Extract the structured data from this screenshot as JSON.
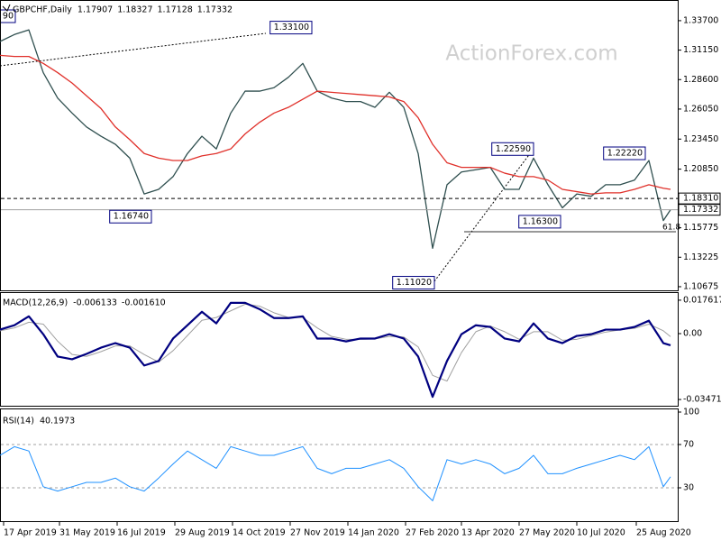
{
  "chart_data": [
    {
      "type": "line",
      "title": "GBPCHF,Daily",
      "ohlc": [
        1.17907,
        1.18327,
        1.17128,
        1.17332
      ],
      "x": [
        0,
        8,
        16,
        24,
        32,
        40,
        48,
        56,
        64,
        72,
        80,
        88,
        96,
        104,
        112,
        120,
        128,
        136,
        144,
        152,
        160,
        168,
        176,
        184,
        192,
        200,
        208,
        216,
        224,
        232,
        240,
        248,
        256,
        264,
        272,
        280,
        288,
        296,
        304,
        312,
        320,
        328,
        336,
        344,
        352,
        360,
        368,
        372
      ],
      "xlim": [
        0,
        376
      ],
      "xticks": [
        {
          "value": 2,
          "label": "17 Apr 2019"
        },
        {
          "value": 33,
          "label": "31 May 2019"
        },
        {
          "value": 65,
          "label": "16 Jul 2019"
        },
        {
          "value": 97,
          "label": "29 Aug 2019"
        },
        {
          "value": 129,
          "label": "14 Oct 2019"
        },
        {
          "value": 161,
          "label": "27 Nov 2019"
        },
        {
          "value": 193,
          "label": "14 Jan 2020"
        },
        {
          "value": 225,
          "label": "27 Feb 2020"
        },
        {
          "value": 256,
          "label": "13 Apr 2020"
        },
        {
          "value": 288,
          "label": "27 May 2020"
        },
        {
          "value": 320,
          "label": "10 Jul 2020"
        },
        {
          "value": 353,
          "label": "25 Aug 2020"
        }
      ],
      "ylim": [
        1.1036,
        1.3541
      ],
      "yticks": [
        {
          "value": 1.337,
          "label": "1.33700"
        },
        {
          "value": 1.3115,
          "label": "1.31150"
        },
        {
          "value": 1.286,
          "label": "1.28600"
        },
        {
          "value": 1.2605,
          "label": "1.26050"
        },
        {
          "value": 1.2345,
          "label": "1.23450"
        },
        {
          "value": 1.2085,
          "label": "1.20850"
        },
        1.15775,
        1.13225,
        1.10675
      ],
      "series": [
        {
          "color": "#2f4f4f",
          "values": [
            1.319,
            1.325,
            1.329,
            1.292,
            1.27,
            1.257,
            1.245,
            1.237,
            1.23,
            1.218,
            1.187,
            1.191,
            1.202,
            1.222,
            1.237,
            1.226,
            1.257,
            1.276,
            1.276,
            1.279,
            1.288,
            1.3,
            1.276,
            1.27,
            1.267,
            1.267,
            1.262,
            1.275,
            1.262,
            1.222,
            1.14,
            1.195,
            1.206,
            1.208,
            1.21,
            1.191,
            1.191,
            1.218,
            1.195,
            1.175,
            1.187,
            1.185,
            1.195,
            1.195,
            1.199,
            1.216,
            1.164,
            1.17332
          ]
        },
        {
          "color": "#e0302a",
          "values": [
            1.307,
            1.306,
            1.306,
            1.3,
            1.292,
            1.283,
            1.272,
            1.261,
            1.245,
            1.234,
            1.222,
            1.218,
            1.216,
            1.216,
            1.22,
            1.222,
            1.226,
            1.239,
            1.249,
            1.257,
            1.262,
            1.269,
            1.276,
            1.275,
            1.274,
            1.273,
            1.272,
            1.271,
            1.267,
            1.253,
            1.23,
            1.214,
            1.21,
            1.21,
            1.21,
            1.205,
            1.202,
            1.202,
            1.199,
            1.191,
            1.189,
            1.187,
            1.188,
            1.188,
            1.191,
            1.195,
            1.192,
            1.191
          ]
        }
      ],
      "price_lines": [
        {
          "value": 1.1831,
          "label": "1.18310",
          "style": "dashed"
        },
        {
          "value": 1.17332,
          "label": "1.17332",
          "style": "solid"
        }
      ],
      "annotations": [
        {
          "x": 173,
          "value": 1.331,
          "label": "1.33100"
        },
        {
          "x": 84,
          "value": 1.1674,
          "label": "1.16740"
        },
        {
          "x": 296,
          "value": 1.2259,
          "label": "1.22590"
        },
        {
          "x": 311,
          "value": 1.163,
          "label": "1.16300"
        },
        {
          "x": 358,
          "value": 1.2222,
          "label": "1.22220"
        },
        {
          "x": 241,
          "value": 1.1102,
          "label": "1.11020"
        }
      ],
      "clipped_label": "90",
      "fib_label": 61.8,
      "watermark": "ActionForex.com"
    },
    {
      "type": "line",
      "title": "MACD(12,26,9)",
      "indicator_values": [
        -0.006133,
        {
          "value": -0.00161,
          "label": "-0.001610"
        }
      ],
      "ylim": [
        -0.038,
        0.0209
      ],
      "yticks": [
        0.017617,
        {
          "value": 0,
          "label": "0.00"
        },
        -0.034711
      ],
      "series": [
        {
          "color": "#a0a0a0",
          "width": 1,
          "values": [
            0.0015,
            0.003,
            0.006,
            0.005,
            -0.004,
            -0.011,
            -0.012,
            -0.0095,
            -0.0065,
            -0.0065,
            -0.011,
            -0.015,
            -0.009,
            -0.001,
            0.007,
            0.0085,
            0.012,
            0.0155,
            0.0145,
            0.011,
            0.0085,
            0.0085,
            0.003,
            -0.0015,
            -0.003,
            -0.003,
            -0.0028,
            -0.0015,
            -0.0018,
            -0.007,
            -0.022,
            -0.025,
            -0.01,
            0.001,
            0.004,
            0.001,
            -0.003,
            0.001,
            0.001,
            -0.0035,
            -0.003,
            -0.001,
            0.0008,
            0.002,
            0.0028,
            0.005,
            0.0015,
            -0.00161
          ]
        },
        {
          "color": "#000080",
          "width": 2.2,
          "values": [
            0.0021,
            0.0044,
            0.0091,
            -0.0003,
            -0.0121,
            -0.0135,
            -0.0107,
            -0.0074,
            -0.005,
            -0.0074,
            -0.0168,
            -0.0144,
            -0.0026,
            0.0044,
            0.0115,
            0.0054,
            0.0162,
            0.0162,
            0.0129,
            0.0082,
            0.0082,
            0.0091,
            -0.0026,
            -0.0026,
            -0.0041,
            -0.0026,
            -0.0026,
            -0.0003,
            -0.0026,
            -0.0121,
            -0.0333,
            -0.0144,
            -0.0003,
            0.0044,
            0.0035,
            -0.0026,
            -0.0041,
            0.0054,
            -0.0026,
            -0.005,
            -0.0012,
            -0.0003,
            0.0021,
            0.0021,
            0.0035,
            0.0068,
            -0.005,
            -0.006133
          ]
        }
      ]
    },
    {
      "type": "line",
      "title": "RSI(14)",
      "indicator_values": [
        40.1973
      ],
      "ylim": [
        0,
        100
      ],
      "yticks": [
        30,
        70,
        100
      ],
      "grid": "dashed",
      "series": [
        {
          "color": "#1e90ff",
          "width": 1,
          "values": [
            60,
            68,
            64,
            31,
            27,
            31,
            35,
            35,
            39,
            31,
            27,
            39,
            52,
            64,
            56,
            48,
            68,
            64,
            60,
            60,
            64,
            68,
            48,
            43,
            48,
            48,
            52,
            56,
            48,
            31,
            18,
            56,
            52,
            56,
            52,
            43,
            48,
            60,
            43,
            43,
            48,
            52,
            56,
            60,
            56,
            68,
            31,
            40.1973
          ]
        }
      ]
    }
  ]
}
